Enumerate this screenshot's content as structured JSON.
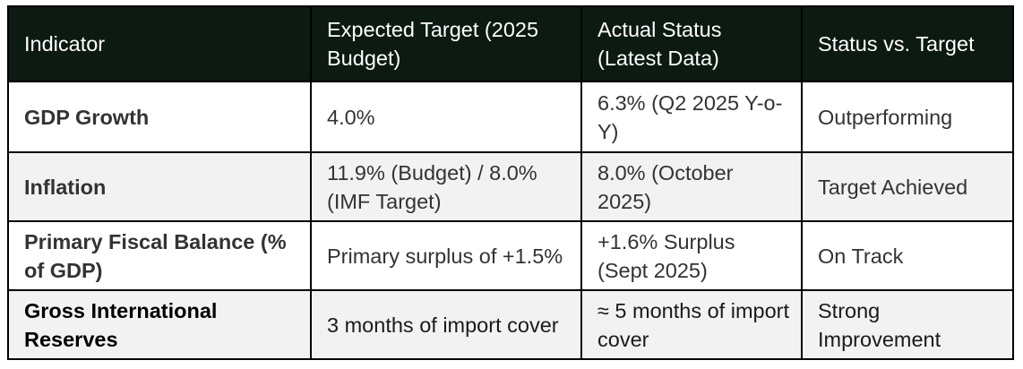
{
  "table": {
    "headers": [
      "Indicator",
      "Expected Target (2025 Budget)",
      "Actual Status (Latest Data)",
      "Status vs. Target"
    ],
    "rows": [
      [
        "GDP Growth",
        "4.0%",
        "6.3% (Q2 2025 Y-o-Y)",
        "Outperforming"
      ],
      [
        "Inflation",
        "11.9% (Budget) / 8.0% (IMF Target)",
        "8.0% (October 2025)",
        "Target Achieved"
      ],
      [
        "Primary Fiscal Balance (% of GDP)",
        "Primary surplus of +1.5%",
        "+1.6% Surplus (Sept 2025)",
        "On Track"
      ],
      [
        "Gross International Reserves",
        "3 months of import cover",
        "≈ 5 months of import cover",
        "Strong Improvement"
      ]
    ]
  },
  "colors": {
    "header_bg": "#0c1a12",
    "header_text": "#ffffff",
    "row_alt_bg": "#f2f2f2",
    "border": "#000000"
  }
}
